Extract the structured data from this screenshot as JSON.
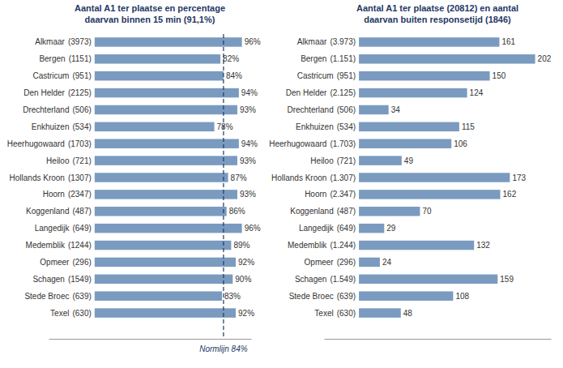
{
  "chart_data": [
    {
      "type": "bar",
      "orientation": "horizontal",
      "title": "Aantal A1 ter plaatse en percentage\ndaarvan binnen 15 min (91,1%)",
      "categories": [
        "Alkmaar",
        "Bergen",
        "Castricum",
        "Den Helder",
        "Drechterland",
        "Enkhuizen",
        "Heerhugowaard",
        "Heiloo",
        "Hollands Kroon",
        "Hoorn",
        "Koggenland",
        "Langedijk",
        "Medemblik",
        "Opmeer",
        "Schagen",
        "Stede Broec",
        "Texel"
      ],
      "category_counts": [
        "(3973)",
        "(1151)",
        "(951)",
        "(2125)",
        "(506)",
        "(534)",
        "(1703)",
        "(721)",
        "(1307)",
        "(2347)",
        "(487)",
        "(649)",
        "(1244)",
        "(296)",
        "(1549)",
        "(639)",
        "(630)"
      ],
      "values": [
        96,
        82,
        84,
        94,
        93,
        78,
        94,
        93,
        87,
        93,
        86,
        96,
        89,
        92,
        90,
        83,
        92
      ],
      "value_labels": [
        "96%",
        "82%",
        "84%",
        "94%",
        "93%",
        "78%",
        "94%",
        "93%",
        "87%",
        "93%",
        "86%",
        "96%",
        "89%",
        "92%",
        "90%",
        "83%",
        "92%"
      ],
      "data_labels": true,
      "color": "#7a9bbf",
      "xlim": [
        -30,
        102
      ],
      "tick_labels": false,
      "grid": false,
      "norm_value": 84,
      "norm_label": "Normlijn 84%"
    },
    {
      "type": "bar",
      "orientation": "horizontal",
      "title": "Aantal A1 ter plaatse (20812) en aantal\ndaarvan buiten responsetijd (1846)",
      "categories": [
        "Alkmaar",
        "Bergen",
        "Castricum",
        "Den Helder",
        "Drechterland",
        "Enkhuizen",
        "Heerhugowaard",
        "Heiloo",
        "Hollands Kroon",
        "Hoorn",
        "Koggenland",
        "Langedijk",
        "Medemblik",
        "Opmeer",
        "Schagen",
        "Stede Broec",
        "Texel"
      ],
      "category_counts": [
        "(3.973)",
        "(1.151)",
        "(951)",
        "(2.125)",
        "(506)",
        "(534)",
        "(1.703)",
        "(721)",
        "(1.307)",
        "(2.347)",
        "(487)",
        "(649)",
        "(1.244)",
        "(296)",
        "(1.549)",
        "(639)",
        "(630)"
      ],
      "values": [
        161,
        202,
        150,
        124,
        34,
        115,
        106,
        49,
        173,
        162,
        70,
        29,
        132,
        24,
        159,
        108,
        48
      ],
      "data_labels": true,
      "color": "#7a9bbf",
      "xlim": [
        -40,
        220
      ],
      "tick_labels": false,
      "grid": false
    }
  ]
}
